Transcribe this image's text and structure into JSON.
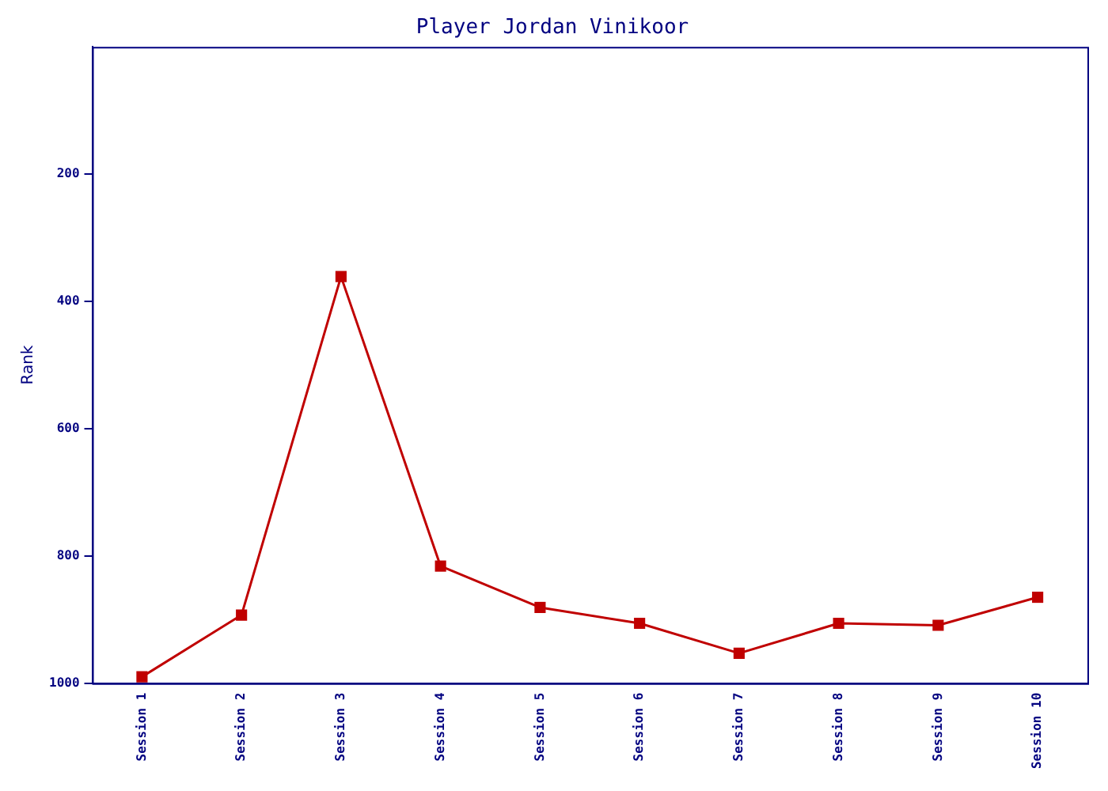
{
  "chart_data": {
    "type": "line",
    "title": "Player Jordan Vinikoor",
    "ylabel": "Rank",
    "categories": [
      "Session 1",
      "Session 2",
      "Session 3",
      "Session 4",
      "Session 5",
      "Session 6",
      "Session 7",
      "Session 8",
      "Session 9",
      "Session 10"
    ],
    "series": [
      {
        "color": "#c00000",
        "values": [
          990,
          893,
          361,
          816,
          881,
          906,
          953,
          906,
          909,
          865
        ]
      }
    ],
    "ylim": [
      1000,
      0
    ],
    "yticks": [
      200,
      400,
      600,
      800,
      1000
    ],
    "grid": false,
    "legend": false,
    "marker": "square",
    "line_style": "solid"
  }
}
